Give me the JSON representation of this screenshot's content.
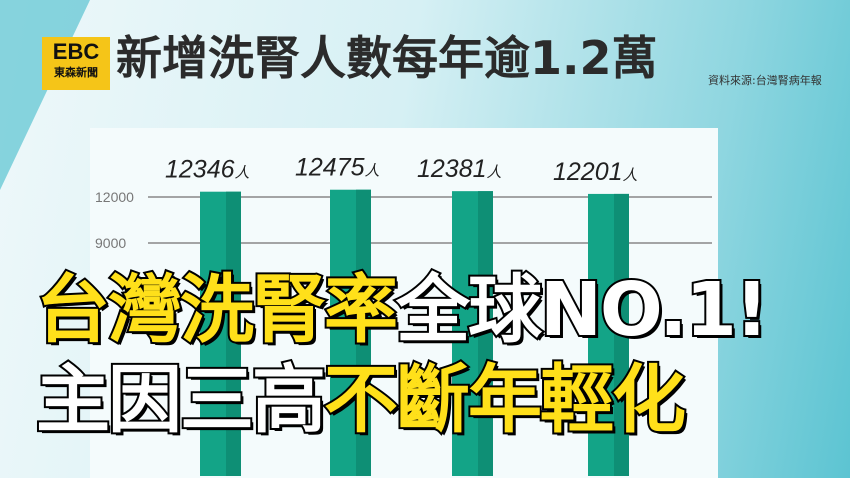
{
  "logo": {
    "text": "EBC",
    "subtext": "東森新聞"
  },
  "title": "新增洗腎人數每年逾1.2萬",
  "source": "資料來源:台灣腎病年報",
  "chart_data": {
    "type": "bar",
    "categories": [
      "",
      "",
      "",
      ""
    ],
    "values": [
      12346,
      12475,
      12381,
      12201
    ],
    "data_labels": [
      "12346",
      "12475",
      "12381",
      "12201"
    ],
    "unit": "人",
    "yticks": [
      9000,
      12000
    ],
    "ylim": [
      0,
      13500
    ],
    "grid": true,
    "color": "#13a487"
  },
  "caption": {
    "line1_yellow": "台灣洗腎率",
    "line1_white": "全球NO.1!",
    "line2_white": "主因三高",
    "line2_yellow": "不斷年輕化"
  }
}
